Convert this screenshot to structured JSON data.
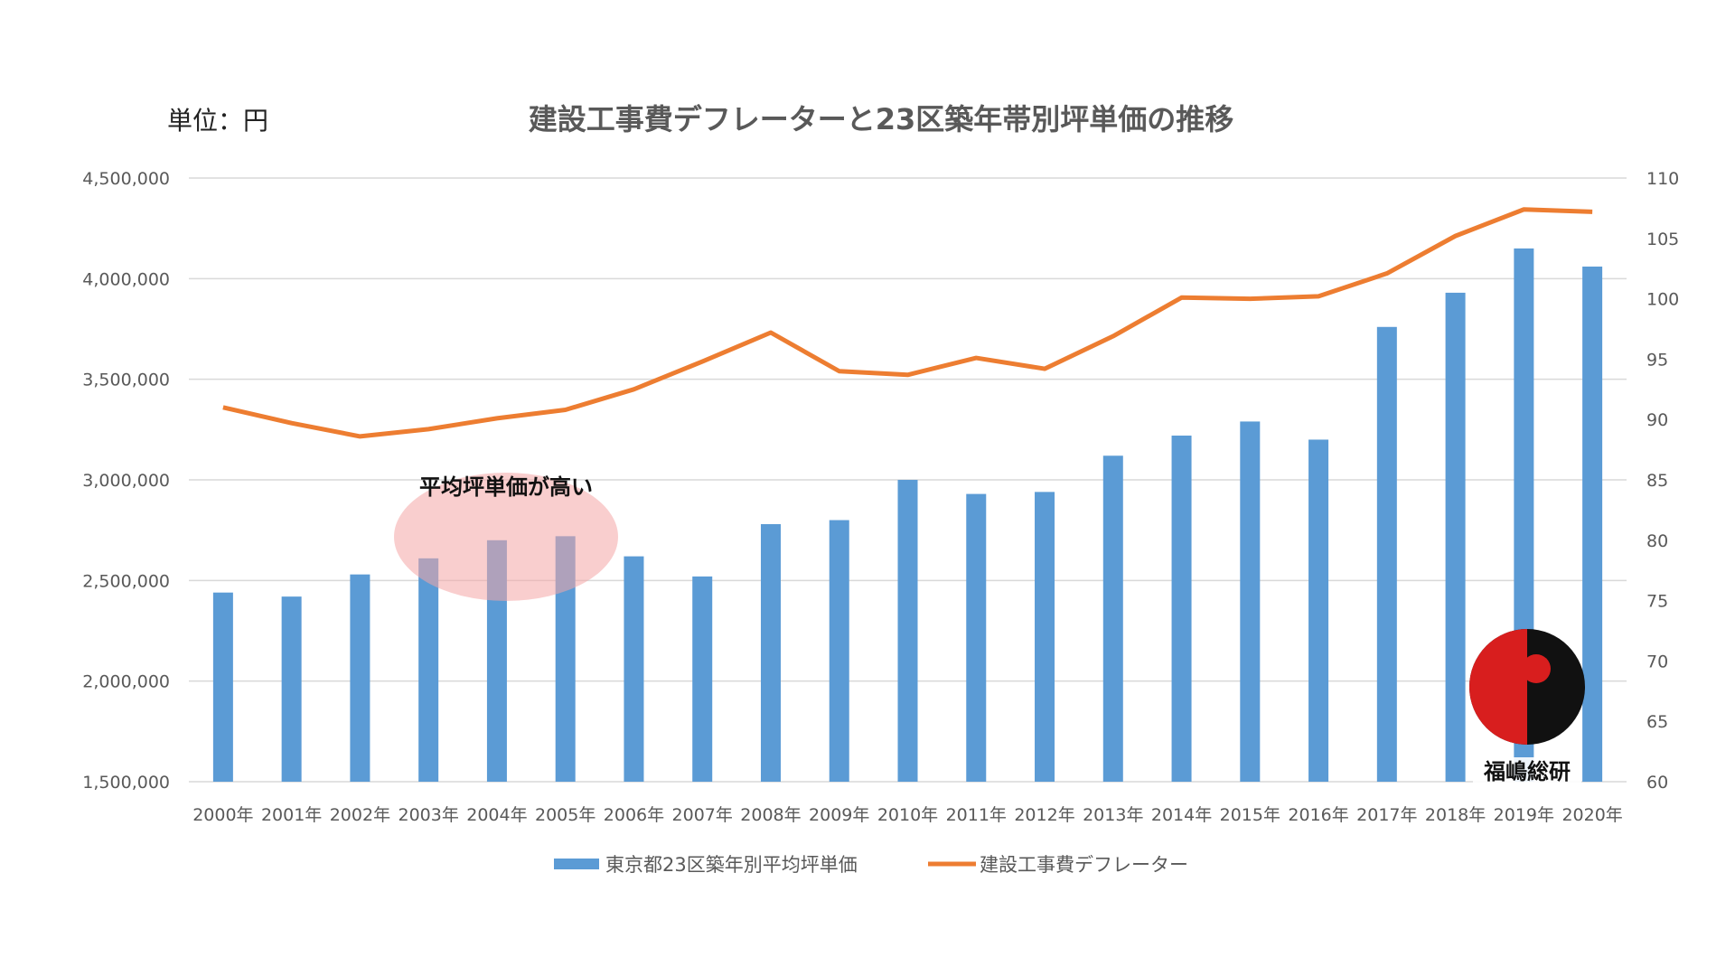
{
  "unit_label": "単位：円",
  "chart_data": {
    "type": "bar+line",
    "title": "建設工事費デフレーターと23区築年帯別坪単価の推移",
    "categories": [
      "2000年",
      "2001年",
      "2002年",
      "2003年",
      "2004年",
      "2005年",
      "2006年",
      "2007年",
      "2008年",
      "2009年",
      "2010年",
      "2011年",
      "2012年",
      "2013年",
      "2014年",
      "2015年",
      "2016年",
      "2017年",
      "2018年",
      "2019年",
      "2020年"
    ],
    "series": [
      {
        "name": "東京都23区築年別平均坪単価",
        "type": "bar",
        "axis": "left",
        "color": "#5b9bd5",
        "values": [
          2440000,
          2420000,
          2530000,
          2610000,
          2700000,
          2720000,
          2620000,
          2520000,
          2780000,
          2800000,
          3000000,
          2930000,
          2940000,
          3120000,
          3220000,
          3290000,
          3200000,
          3760000,
          3930000,
          4150000,
          4060000
        ]
      },
      {
        "name": "建設工事費デフレーター",
        "type": "line",
        "axis": "right",
        "color": "#ed7d31",
        "values": [
          91.0,
          89.7,
          88.6,
          89.2,
          90.1,
          90.8,
          92.5,
          94.8,
          97.2,
          94.0,
          93.7,
          95.1,
          94.2,
          96.9,
          100.1,
          100.0,
          100.2,
          102.1,
          105.2,
          107.4,
          107.2
        ]
      }
    ],
    "left_axis": {
      "ylim": [
        1500000,
        4500000
      ],
      "ticks": [
        "1,500,000",
        "2,000,000",
        "2,500,000",
        "3,000,000",
        "3,500,000",
        "4,000,000",
        "4,500,000"
      ]
    },
    "right_axis": {
      "ylim": [
        60,
        110
      ],
      "ticks": [
        "60",
        "65",
        "70",
        "75",
        "80",
        "85",
        "90",
        "95",
        "100",
        "105",
        "110"
      ]
    },
    "grid": true,
    "legend": "bottom",
    "annotation": {
      "text": "平均坪単価が高い",
      "highlight_color": "#f4a6a6",
      "categories": [
        "2003年",
        "2004年",
        "2005年"
      ]
    },
    "logo_text": "福嶋総研"
  }
}
